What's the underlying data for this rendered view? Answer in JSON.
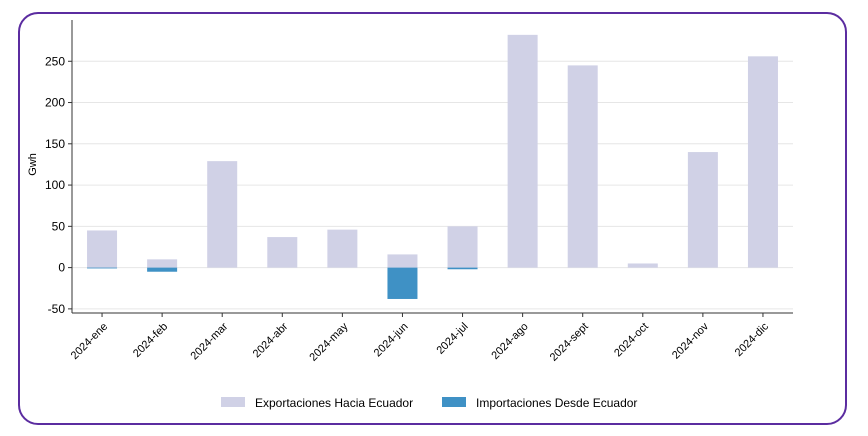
{
  "chart_data": {
    "type": "bar",
    "stacked": true,
    "ylabel": "Gwh",
    "xlabel": "",
    "title": "",
    "ylim": [
      -55,
      300
    ],
    "yticks": [
      -50,
      0,
      50,
      100,
      150,
      200,
      250
    ],
    "grid": "horizontal",
    "legend_position": "bottom",
    "categories": [
      "2024-ene",
      "2024-feb",
      "2024-mar",
      "2024-abr",
      "2024-may",
      "2024-jun",
      "2024-jul",
      "2024-ago",
      "2024-sept",
      "2024-oct",
      "2024-nov",
      "2024-dic"
    ],
    "series": [
      {
        "name": "Exportaciones Hacia Ecuador",
        "color": "#d0d1e6",
        "values": [
          45,
          10,
          129,
          37,
          46,
          16,
          50,
          282,
          245,
          5,
          140,
          256
        ]
      },
      {
        "name": "Importaciones Desde Ecuador",
        "color": "#3f91c5",
        "values": [
          -1,
          -5,
          0,
          0,
          0,
          -38,
          -2,
          0,
          0,
          0,
          0,
          0
        ]
      }
    ]
  }
}
